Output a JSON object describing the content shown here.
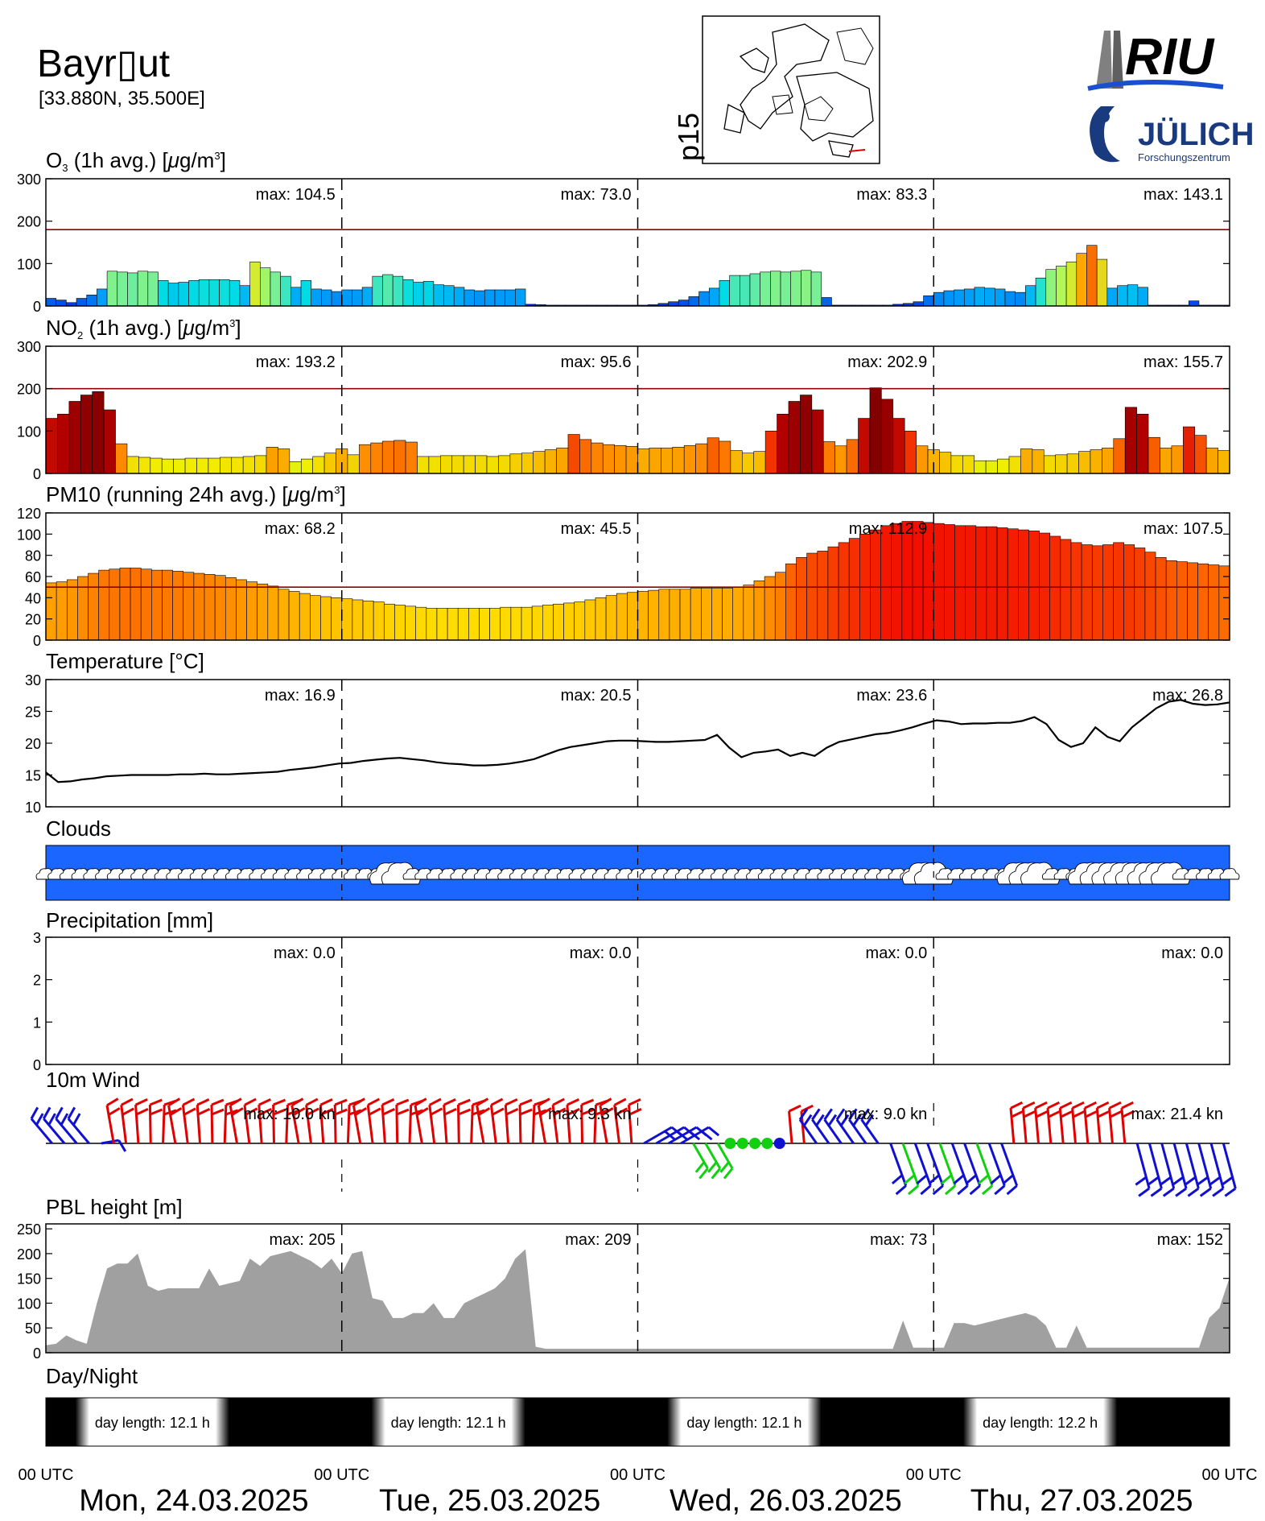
{
  "header": {
    "station": "Bayr▯ut",
    "coords": "[33.880N, 35.500E]",
    "map_label": "p15"
  },
  "logos": {
    "riu": "RIU",
    "julich": "JÜLICH",
    "julich_sub": "Forschungszentrum"
  },
  "panels": {
    "o3": {
      "title_parts": [
        "O",
        "3",
        " (1h avg.) [",
        "μ",
        "g/m",
        "3",
        "]"
      ],
      "yticks": [
        0,
        100,
        200,
        300
      ],
      "ylim": [
        0,
        300
      ],
      "threshold": 180,
      "max": [
        "max: 104.5",
        "max:  73.0",
        "max:  83.3",
        "max: 143.1"
      ]
    },
    "no2": {
      "title_parts": [
        "NO",
        "2",
        " (1h avg.) [",
        "μ",
        "g/m",
        "3",
        "]"
      ],
      "yticks": [
        0,
        100,
        200,
        300
      ],
      "ylim": [
        0,
        300
      ],
      "threshold": 200,
      "max": [
        "max: 193.2",
        "max:  95.6",
        "max: 202.9",
        "max: 155.7"
      ]
    },
    "pm10": {
      "title_parts": [
        "PM10 (running 24h avg.) [",
        "μ",
        "g/m",
        "3",
        "]"
      ],
      "yticks": [
        0,
        20,
        40,
        60,
        80,
        100,
        120
      ],
      "ylim": [
        0,
        120
      ],
      "threshold": 50,
      "max": [
        "max:  68.2",
        "max:  45.5",
        "max: 112.9",
        "max: 107.5"
      ]
    },
    "temp": {
      "title": "Temperature [°C]",
      "yticks": [
        10,
        15,
        20,
        25,
        30
      ],
      "ylim": [
        10,
        30
      ],
      "max": [
        "max:  16.9",
        "max:  20.5",
        "max:  23.6",
        "max:  26.8"
      ]
    },
    "clouds": {
      "title": "Clouds"
    },
    "precip": {
      "title": "Precipitation [mm]",
      "yticks": [
        0,
        1,
        2,
        3
      ],
      "ylim": [
        0,
        3
      ],
      "max": [
        "max:   0.0",
        "max:   0.0",
        "max:   0.0",
        "max:   0.0"
      ]
    },
    "wind": {
      "title": "10m Wind",
      "max": [
        "max:  10.0 kn",
        "max:   9.3 kn",
        "max:   9.0 kn",
        "max:  21.4 kn"
      ]
    },
    "pbl": {
      "title": "PBL height [m]",
      "yticks": [
        0,
        50,
        100,
        150,
        200,
        250
      ],
      "ylim": [
        0,
        260
      ],
      "max": [
        "max:   205",
        "max:   209",
        "max:    73",
        "max:   152"
      ]
    },
    "daynight": {
      "title": "Day/Night",
      "labels": [
        "day length:  12.1 h",
        "day length:  12.1 h",
        "day length:  12.1 h",
        "day length:  12.2 h"
      ]
    }
  },
  "xaxis": {
    "utc_label": "00 UTC",
    "days": [
      "Mon, 24.03.2025",
      "Tue, 25.03.2025",
      "Wed, 26.03.2025",
      "Thu, 27.03.2025"
    ]
  },
  "colors": {
    "threshold": "#8b0000",
    "cloud_sky": "#1a66ff",
    "pbl_fill": "#a0a0a0",
    "wind_red": "#e00000",
    "wind_blue": "#1010d0",
    "wind_green": "#10d010"
  },
  "chart_data": [
    {
      "type": "bar",
      "id": "o3",
      "ylabel": "O3 (1h avg.) [µg/m3]",
      "ylim": [
        0,
        300
      ],
      "x": "hourly, 00 UTC 24.03.2025 – 00 UTC 28.03.2025",
      "values": [
        18,
        14,
        8,
        18,
        26,
        40,
        82,
        80,
        78,
        82,
        80,
        60,
        54,
        56,
        60,
        62,
        62,
        62,
        60,
        48,
        104,
        90,
        80,
        70,
        44,
        60,
        40,
        38,
        34,
        38,
        38,
        44,
        70,
        74,
        70,
        62,
        56,
        58,
        50,
        48,
        44,
        38,
        36,
        38,
        38,
        38,
        40,
        4,
        3,
        2,
        2,
        2,
        2,
        2,
        2,
        2,
        2,
        2,
        2,
        3,
        6,
        10,
        14,
        22,
        34,
        42,
        60,
        72,
        72,
        76,
        80,
        82,
        80,
        82,
        84,
        80,
        20,
        2,
        2,
        2,
        2,
        2,
        2,
        4,
        6,
        10,
        24,
        32,
        36,
        38,
        40,
        44,
        42,
        40,
        34,
        32,
        48,
        66,
        86,
        94,
        104,
        124,
        143,
        110,
        42,
        48,
        50,
        44,
        2,
        2,
        2,
        2,
        12,
        2,
        2,
        2
      ]
    },
    {
      "type": "bar",
      "id": "no2",
      "ylabel": "NO2 (1h avg.) [µg/m3]",
      "ylim": [
        0,
        300
      ],
      "values": [
        130,
        140,
        170,
        185,
        193,
        150,
        70,
        40,
        38,
        36,
        34,
        34,
        36,
        36,
        36,
        38,
        38,
        40,
        42,
        62,
        58,
        28,
        34,
        40,
        48,
        58,
        44,
        68,
        72,
        76,
        78,
        74,
        40,
        40,
        42,
        42,
        42,
        42,
        40,
        42,
        46,
        48,
        52,
        56,
        60,
        92,
        80,
        72,
        68,
        66,
        64,
        58,
        60,
        60,
        62,
        66,
        70,
        84,
        76,
        54,
        48,
        52,
        100,
        140,
        170,
        185,
        150,
        75,
        65,
        80,
        130,
        202,
        175,
        130,
        100,
        65,
        56,
        50,
        42,
        42,
        30,
        30,
        34,
        40,
        58,
        56,
        42,
        44,
        46,
        52,
        56,
        60,
        82,
        156,
        140,
        85,
        60,
        65,
        110,
        90,
        60,
        54
      ]
    },
    {
      "type": "bar",
      "id": "pm10",
      "ylabel": "PM10 (running 24h avg.) [µg/m3]",
      "ylim": [
        0,
        120
      ],
      "values": [
        54,
        55,
        57,
        60,
        63,
        66,
        67,
        68,
        68,
        67,
        66,
        66,
        65,
        64,
        63,
        62,
        61,
        59,
        57,
        55,
        53,
        51,
        48,
        46,
        44,
        42,
        41,
        40,
        39,
        38,
        37,
        36,
        34,
        33,
        32,
        31,
        30,
        30,
        30,
        30,
        30,
        30,
        30,
        31,
        31,
        31,
        32,
        33,
        34,
        35,
        36,
        38,
        40,
        42,
        44,
        45,
        46,
        47,
        48,
        48,
        48,
        49,
        49,
        49,
        49,
        50,
        52,
        56,
        60,
        64,
        72,
        78,
        82,
        84,
        88,
        92,
        96,
        100,
        104,
        108,
        110,
        112,
        112,
        111,
        110,
        109,
        108,
        108,
        107,
        107,
        106,
        105,
        104,
        103,
        101,
        98,
        95,
        92,
        90,
        89,
        90,
        92,
        90,
        87,
        83,
        78,
        75,
        74,
        73,
        72,
        71,
        70
      ]
    },
    {
      "type": "line",
      "id": "temperature",
      "ylabel": "Temperature [°C]",
      "ylim": [
        10,
        30
      ],
      "values": [
        15.4,
        13.9,
        14.0,
        14.3,
        14.5,
        14.8,
        14.9,
        15.0,
        15.0,
        15.0,
        15.0,
        15.1,
        15.1,
        15.2,
        15.1,
        15.1,
        15.2,
        15.3,
        15.4,
        15.5,
        15.8,
        16.0,
        16.2,
        16.5,
        16.8,
        16.9,
        17.2,
        17.4,
        17.6,
        17.7,
        17.5,
        17.3,
        17.0,
        16.8,
        16.7,
        16.5,
        16.5,
        16.6,
        16.8,
        17.1,
        17.5,
        18.2,
        18.9,
        19.4,
        19.7,
        20.0,
        20.3,
        20.4,
        20.4,
        20.3,
        20.2,
        20.2,
        20.3,
        20.4,
        20.5,
        21.3,
        19.3,
        17.8,
        18.5,
        18.7,
        19.0,
        18.0,
        18.5,
        18.0,
        19.3,
        20.2,
        20.6,
        21.0,
        21.4,
        21.6,
        22.0,
        22.5,
        23.1,
        23.6,
        23.4,
        23.0,
        23.1,
        23.1,
        23.2,
        23.2,
        23.5,
        24.1,
        23.0,
        20.5,
        19.4,
        20.0,
        22.5,
        21.0,
        20.3,
        22.5,
        24.0,
        25.5,
        26.5,
        26.8,
        26.2,
        26.0,
        26.1,
        26.4
      ]
    },
    {
      "type": "line",
      "id": "precipitation",
      "ylabel": "Precipitation [mm]",
      "ylim": [
        0,
        3
      ],
      "values": [
        0.0,
        0.0,
        0.0,
        0.0
      ]
    },
    {
      "type": "area",
      "id": "pbl_height",
      "ylabel": "PBL height [m]",
      "ylim": [
        0,
        260
      ],
      "values": [
        15,
        18,
        35,
        25,
        18,
        100,
        170,
        180,
        180,
        200,
        135,
        125,
        130,
        130,
        130,
        130,
        170,
        135,
        140,
        145,
        190,
        175,
        195,
        200,
        205,
        195,
        185,
        170,
        190,
        160,
        200,
        205,
        110,
        105,
        70,
        70,
        80,
        80,
        100,
        70,
        70,
        100,
        110,
        120,
        130,
        150,
        190,
        209,
        12,
        8,
        8,
        8,
        8,
        8,
        8,
        8,
        8,
        8,
        8,
        8,
        8,
        8,
        8,
        8,
        8,
        8,
        8,
        8,
        8,
        8,
        8,
        8,
        8,
        8,
        8,
        8,
        8,
        8,
        8,
        8,
        8,
        8,
        8,
        8,
        65,
        10,
        10,
        10,
        10,
        60,
        60,
        55,
        60,
        65,
        70,
        75,
        80,
        73,
        55,
        10,
        10,
        55,
        10,
        10,
        10,
        10,
        10,
        10,
        10,
        10,
        10,
        10,
        10,
        10,
        70,
        90,
        152
      ]
    },
    {
      "type": "table",
      "id": "daily_max",
      "columns": [
        "day",
        "O3",
        "NO2",
        "PM10",
        "Temperature",
        "Precipitation",
        "10m Wind",
        "PBL height",
        "day length"
      ],
      "rows": [
        [
          "Mon, 24.03.2025",
          "104.5",
          "193.2",
          "68.2",
          "16.9",
          "0.0",
          "10.0 kn",
          "205",
          "12.1 h"
        ],
        [
          "Tue, 25.03.2025",
          "73.0",
          "95.6",
          "45.5",
          "20.5",
          "0.0",
          "9.3 kn",
          "209",
          "12.1 h"
        ],
        [
          "Wed, 26.03.2025",
          "83.3",
          "202.9",
          "112.9",
          "23.6",
          "0.0",
          "9.0 kn",
          "73",
          "12.1 h"
        ],
        [
          "Thu, 27.03.2025",
          "143.1",
          "155.7",
          "107.5",
          "26.8",
          "0.0",
          "21.4 kn",
          "152",
          "12.2 h"
        ]
      ]
    }
  ]
}
